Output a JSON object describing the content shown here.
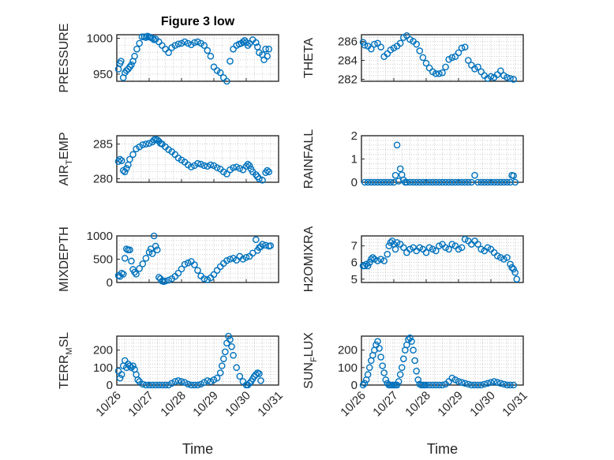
{
  "figure": {
    "title": "Figure 3 low",
    "xlabel": "Time",
    "marker_color": "#0072BD"
  },
  "chart_data": [
    {
      "type": "scatter",
      "id": "pressure",
      "title": "Figure 3 low",
      "ylabel_parts": [
        [
          "PRESSURE",
          false
        ]
      ],
      "xlim": [
        0,
        5
      ],
      "ylim": [
        940,
        1005
      ],
      "yticks": [
        950,
        1000
      ],
      "x": [
        0.05,
        0.1,
        0.13,
        0.2,
        0.25,
        0.3,
        0.35,
        0.4,
        0.45,
        0.5,
        0.55,
        0.62,
        0.7,
        0.78,
        0.85,
        0.9,
        0.95,
        1.0,
        1.05,
        1.1,
        1.15,
        1.2,
        1.3,
        1.4,
        1.5,
        1.6,
        1.7,
        1.8,
        1.9,
        2.0,
        2.1,
        2.2,
        2.3,
        2.4,
        2.5,
        2.6,
        2.7,
        2.8,
        2.9,
        3.0,
        3.1,
        3.2,
        3.3,
        3.4,
        3.5,
        3.6,
        3.7,
        3.78,
        3.85,
        3.9,
        3.95,
        4.0,
        4.05,
        4.1,
        4.2,
        4.3,
        4.35,
        4.4,
        4.5,
        4.55,
        4.6,
        4.65,
        4.7
      ],
      "y": [
        957,
        965,
        968,
        945,
        952,
        955,
        957,
        960,
        963,
        968,
        975,
        985,
        993,
        1002,
        1002,
        1001,
        1003,
        1002,
        1001,
        1000,
        998,
        999,
        995,
        990,
        985,
        980,
        987,
        990,
        992,
        993,
        995,
        993,
        991,
        994,
        995,
        993,
        990,
        983,
        975,
        960,
        955,
        952,
        945,
        940,
        968,
        985,
        990,
        992,
        993,
        995,
        997,
        994,
        990,
        993,
        998,
        994,
        988,
        980,
        977,
        970,
        985,
        975,
        985
      ]
    },
    {
      "type": "scatter",
      "id": "theta",
      "ylabel_parts": [
        [
          "THETA",
          false
        ]
      ],
      "xlim": [
        0,
        5
      ],
      "ylim": [
        281.8,
        286.7
      ],
      "yticks": [
        282,
        284,
        286
      ],
      "x": [
        0.05,
        0.1,
        0.2,
        0.3,
        0.4,
        0.5,
        0.6,
        0.7,
        0.8,
        0.9,
        1.0,
        1.1,
        1.2,
        1.3,
        1.4,
        1.5,
        1.6,
        1.7,
        1.8,
        1.9,
        2.0,
        2.1,
        2.2,
        2.3,
        2.4,
        2.5,
        2.6,
        2.7,
        2.8,
        2.9,
        3.0,
        3.1,
        3.2,
        3.3,
        3.4,
        3.5,
        3.6,
        3.7,
        3.8,
        3.9,
        4.0,
        4.1,
        4.2,
        4.3,
        4.4,
        4.5,
        4.6,
        4.7
      ],
      "y": [
        285.9,
        285.6,
        285.5,
        285.2,
        285.7,
        285.8,
        285.4,
        284.4,
        284.7,
        285.1,
        285.3,
        285.5,
        285.8,
        286.4,
        286.6,
        286.2,
        286.0,
        285.7,
        285.0,
        284.3,
        283.7,
        283.2,
        282.8,
        282.6,
        282.6,
        282.7,
        283.3,
        284.1,
        284.3,
        284.4,
        284.8,
        285.3,
        285.4,
        284.0,
        283.5,
        283.1,
        283.3,
        282.8,
        282.4,
        282.1,
        282.3,
        282.2,
        282.5,
        282.9,
        282.4,
        282.2,
        282.1,
        282.0
      ]
    },
    {
      "type": "scatter",
      "id": "airtemp",
      "ylabel_parts": [
        [
          "AIR",
          false
        ],
        [
          "T",
          true
        ],
        [
          "EMP",
          false
        ]
      ],
      "xlim": [
        0,
        5
      ],
      "ylim": [
        279.5,
        286.2
      ],
      "yticks": [
        280,
        285
      ],
      "x": [
        0.05,
        0.1,
        0.15,
        0.2,
        0.25,
        0.3,
        0.35,
        0.4,
        0.5,
        0.6,
        0.7,
        0.8,
        0.9,
        1.0,
        1.1,
        1.15,
        1.2,
        1.25,
        1.3,
        1.35,
        1.4,
        1.5,
        1.6,
        1.7,
        1.8,
        1.9,
        2.0,
        2.1,
        2.2,
        2.3,
        2.4,
        2.5,
        2.6,
        2.7,
        2.8,
        2.9,
        3.0,
        3.1,
        3.2,
        3.3,
        3.4,
        3.5,
        3.6,
        3.7,
        3.8,
        3.9,
        4.0,
        4.05,
        4.1,
        4.15,
        4.2,
        4.3,
        4.35,
        4.4,
        4.5,
        4.6,
        4.65,
        4.7
      ],
      "y": [
        282.5,
        282.8,
        282.6,
        281.2,
        281.0,
        281.5,
        282.0,
        282.8,
        283.5,
        284.3,
        284.6,
        284.9,
        285.0,
        285.1,
        285.3,
        285.6,
        285.7,
        285.6,
        285.4,
        285.1,
        285.0,
        284.6,
        284.2,
        283.9,
        283.5,
        283.0,
        282.7,
        282.4,
        282.0,
        281.7,
        281.9,
        282.2,
        282.1,
        281.9,
        281.8,
        282.0,
        281.9,
        281.6,
        281.4,
        281.0,
        280.7,
        281.3,
        281.6,
        281.7,
        281.5,
        281.3,
        281.8,
        282.1,
        281.9,
        281.4,
        281.0,
        280.6,
        280.3,
        280.0,
        279.8,
        280.9,
        281.2,
        281.0
      ]
    },
    {
      "type": "scatter",
      "id": "rainfall",
      "ylabel_parts": [
        [
          "RAINFALL",
          false
        ]
      ],
      "xlim": [
        0,
        5
      ],
      "ylim": [
        0,
        2
      ],
      "yticks": [
        0,
        1,
        2
      ],
      "x": [
        0.1,
        0.2,
        0.3,
        0.4,
        0.5,
        0.6,
        0.7,
        0.8,
        0.9,
        1.0,
        1.05,
        1.1,
        1.15,
        1.2,
        1.25,
        1.3,
        1.35,
        1.4,
        1.5,
        1.6,
        1.7,
        1.8,
        1.9,
        2.0,
        2.1,
        2.2,
        2.3,
        2.4,
        2.5,
        2.6,
        2.7,
        2.8,
        2.9,
        3.0,
        3.1,
        3.2,
        3.3,
        3.4,
        3.5,
        3.6,
        3.7,
        3.8,
        3.9,
        4.0,
        4.1,
        4.2,
        4.3,
        4.4,
        4.5,
        4.6,
        4.65,
        4.7,
        4.75
      ],
      "y": [
        0,
        0,
        0,
        0,
        0,
        0,
        0,
        0,
        0,
        0,
        0.3,
        1.6,
        0.05,
        0.58,
        0.32,
        0.1,
        0,
        0,
        0,
        0,
        0,
        0,
        0,
        0,
        0,
        0,
        0,
        0,
        0,
        0,
        0,
        0,
        0,
        0,
        0,
        0,
        0,
        0,
        0.3,
        0,
        0,
        0,
        0,
        0,
        0,
        0,
        0,
        0,
        0,
        0,
        0.3,
        0.28,
        0
      ]
    },
    {
      "type": "scatter",
      "id": "mixdepth",
      "ylabel_parts": [
        [
          "MIXDEPTH",
          false
        ]
      ],
      "xlim": [
        0,
        5
      ],
      "ylim": [
        0,
        1000
      ],
      "yticks": [
        0,
        500,
        1000
      ],
      "x": [
        0.05,
        0.1,
        0.15,
        0.2,
        0.25,
        0.3,
        0.35,
        0.4,
        0.45,
        0.5,
        0.55,
        0.6,
        0.7,
        0.8,
        0.9,
        1.0,
        1.05,
        1.1,
        1.15,
        1.2,
        1.25,
        1.3,
        1.35,
        1.4,
        1.45,
        1.5,
        1.6,
        1.7,
        1.8,
        1.9,
        2.0,
        2.1,
        2.2,
        2.3,
        2.4,
        2.5,
        2.6,
        2.7,
        2.8,
        2.9,
        3.0,
        3.1,
        3.2,
        3.3,
        3.4,
        3.5,
        3.6,
        3.7,
        3.8,
        3.9,
        4.0,
        4.1,
        4.2,
        4.3,
        4.35,
        4.4,
        4.45,
        4.5,
        4.6,
        4.7,
        4.75
      ],
      "y": [
        150,
        130,
        200,
        180,
        520,
        720,
        700,
        700,
        460,
        280,
        220,
        180,
        300,
        400,
        520,
        650,
        720,
        620,
        1000,
        780,
        700,
        110,
        80,
        30,
        20,
        30,
        50,
        80,
        130,
        200,
        290,
        390,
        420,
        450,
        380,
        260,
        140,
        80,
        60,
        100,
        170,
        260,
        340,
        410,
        470,
        500,
        520,
        480,
        560,
        500,
        540,
        560,
        630,
        920,
        690,
        750,
        770,
        820,
        800,
        780,
        790
      ]
    },
    {
      "type": "scatter",
      "id": "h2omixra",
      "ylabel_parts": [
        [
          "H2OMIXRA",
          false
        ]
      ],
      "xlim": [
        0,
        5
      ],
      "ylim": [
        4.8,
        7.6
      ],
      "yticks": [
        5,
        6,
        7
      ],
      "x": [
        0.05,
        0.1,
        0.15,
        0.2,
        0.25,
        0.3,
        0.35,
        0.4,
        0.5,
        0.6,
        0.7,
        0.8,
        0.85,
        0.9,
        0.95,
        1.0,
        1.05,
        1.1,
        1.2,
        1.3,
        1.4,
        1.5,
        1.6,
        1.7,
        1.8,
        1.9,
        2.0,
        2.1,
        2.2,
        2.3,
        2.4,
        2.5,
        2.6,
        2.7,
        2.8,
        2.9,
        3.0,
        3.1,
        3.2,
        3.3,
        3.4,
        3.5,
        3.6,
        3.7,
        3.8,
        3.9,
        4.0,
        4.1,
        4.2,
        4.3,
        4.4,
        4.5,
        4.6,
        4.65,
        4.7,
        4.75,
        4.8
      ],
      "y": [
        5.8,
        5.8,
        5.9,
        5.8,
        6.0,
        6.2,
        6.3,
        6.2,
        6.1,
        6.2,
        6.1,
        6.5,
        7.0,
        7.2,
        7.3,
        7.1,
        6.8,
        7.2,
        7.1,
        6.9,
        6.6,
        6.8,
        6.9,
        6.7,
        6.9,
        6.8,
        6.6,
        6.9,
        6.8,
        6.7,
        7.0,
        7.1,
        6.9,
        6.8,
        7.1,
        7.0,
        6.8,
        6.9,
        7.4,
        7.3,
        7.1,
        7.3,
        7.1,
        6.8,
        6.7,
        6.9,
        6.8,
        6.6,
        6.4,
        6.3,
        6.2,
        6.3,
        5.9,
        5.7,
        5.6,
        5.4,
        5.0
      ]
    },
    {
      "type": "scatter",
      "id": "terrmsl",
      "ylabel_parts": [
        [
          "TERR",
          false
        ],
        [
          "M",
          true
        ],
        [
          "SL",
          false
        ]
      ],
      "xlim": [
        0,
        5
      ],
      "ylim": [
        0,
        280
      ],
      "yticks": [
        0,
        100,
        200
      ],
      "x": [
        0.05,
        0.1,
        0.15,
        0.2,
        0.25,
        0.3,
        0.35,
        0.4,
        0.45,
        0.5,
        0.55,
        0.6,
        0.65,
        0.7,
        0.8,
        0.9,
        1.0,
        1.1,
        1.2,
        1.3,
        1.4,
        1.5,
        1.6,
        1.7,
        1.8,
        1.9,
        2.0,
        2.1,
        2.2,
        2.3,
        2.4,
        2.5,
        2.6,
        2.7,
        2.8,
        2.9,
        3.0,
        3.1,
        3.2,
        3.25,
        3.3,
        3.35,
        3.4,
        3.45,
        3.5,
        3.55,
        3.6,
        3.7,
        3.8,
        3.9,
        4.0,
        4.05,
        4.1,
        4.15,
        4.2,
        4.25,
        4.3,
        4.35,
        4.4,
        4.45
      ],
      "y": [
        80,
        40,
        60,
        110,
        140,
        100,
        120,
        110,
        100,
        110,
        90,
        60,
        30,
        20,
        5,
        0,
        0,
        0,
        0,
        0,
        0,
        0,
        0,
        10,
        20,
        25,
        20,
        15,
        5,
        0,
        0,
        0,
        5,
        15,
        25,
        20,
        30,
        40,
        70,
        110,
        150,
        190,
        240,
        280,
        260,
        220,
        170,
        100,
        50,
        20,
        0,
        0,
        10,
        20,
        35,
        50,
        60,
        70,
        65,
        25
      ]
    },
    {
      "type": "scatter",
      "id": "sunflux",
      "ylabel_parts": [
        [
          "SUN",
          false
        ],
        [
          "F",
          true
        ],
        [
          "LUX",
          false
        ]
      ],
      "xlim": [
        0,
        5
      ],
      "ylim": [
        0,
        280
      ],
      "yticks": [
        0,
        100,
        200
      ],
      "x": [
        0.05,
        0.1,
        0.15,
        0.2,
        0.25,
        0.3,
        0.35,
        0.4,
        0.45,
        0.5,
        0.55,
        0.6,
        0.65,
        0.7,
        0.75,
        0.8,
        0.85,
        0.9,
        0.95,
        1.0,
        1.05,
        1.1,
        1.15,
        1.2,
        1.25,
        1.3,
        1.35,
        1.4,
        1.45,
        1.5,
        1.55,
        1.6,
        1.65,
        1.7,
        1.75,
        1.8,
        1.85,
        1.9,
        1.95,
        2.0,
        2.1,
        2.2,
        2.3,
        2.4,
        2.5,
        2.6,
        2.7,
        2.8,
        2.9,
        3.0,
        3.1,
        3.2,
        3.3,
        3.4,
        3.5,
        3.6,
        3.7,
        3.8,
        3.9,
        4.0,
        4.1,
        4.2,
        4.3,
        4.4,
        4.5,
        4.6,
        4.7
      ],
      "y": [
        0,
        10,
        30,
        60,
        100,
        140,
        170,
        200,
        230,
        250,
        210,
        160,
        110,
        70,
        30,
        10,
        0,
        0,
        0,
        0,
        0,
        0,
        20,
        60,
        100,
        150,
        200,
        230,
        260,
        270,
        250,
        200,
        140,
        80,
        30,
        5,
        0,
        0,
        0,
        0,
        0,
        0,
        0,
        0,
        0,
        5,
        20,
        40,
        30,
        20,
        15,
        10,
        5,
        0,
        0,
        0,
        0,
        5,
        10,
        15,
        20,
        15,
        10,
        5,
        0,
        0,
        0
      ]
    }
  ],
  "xaxis": {
    "tick_labels": [
      "10/26",
      "10/27",
      "10/28",
      "10/29",
      "10/30",
      "10/31"
    ],
    "tick_values": [
      0,
      1,
      2,
      3,
      4,
      5
    ]
  }
}
